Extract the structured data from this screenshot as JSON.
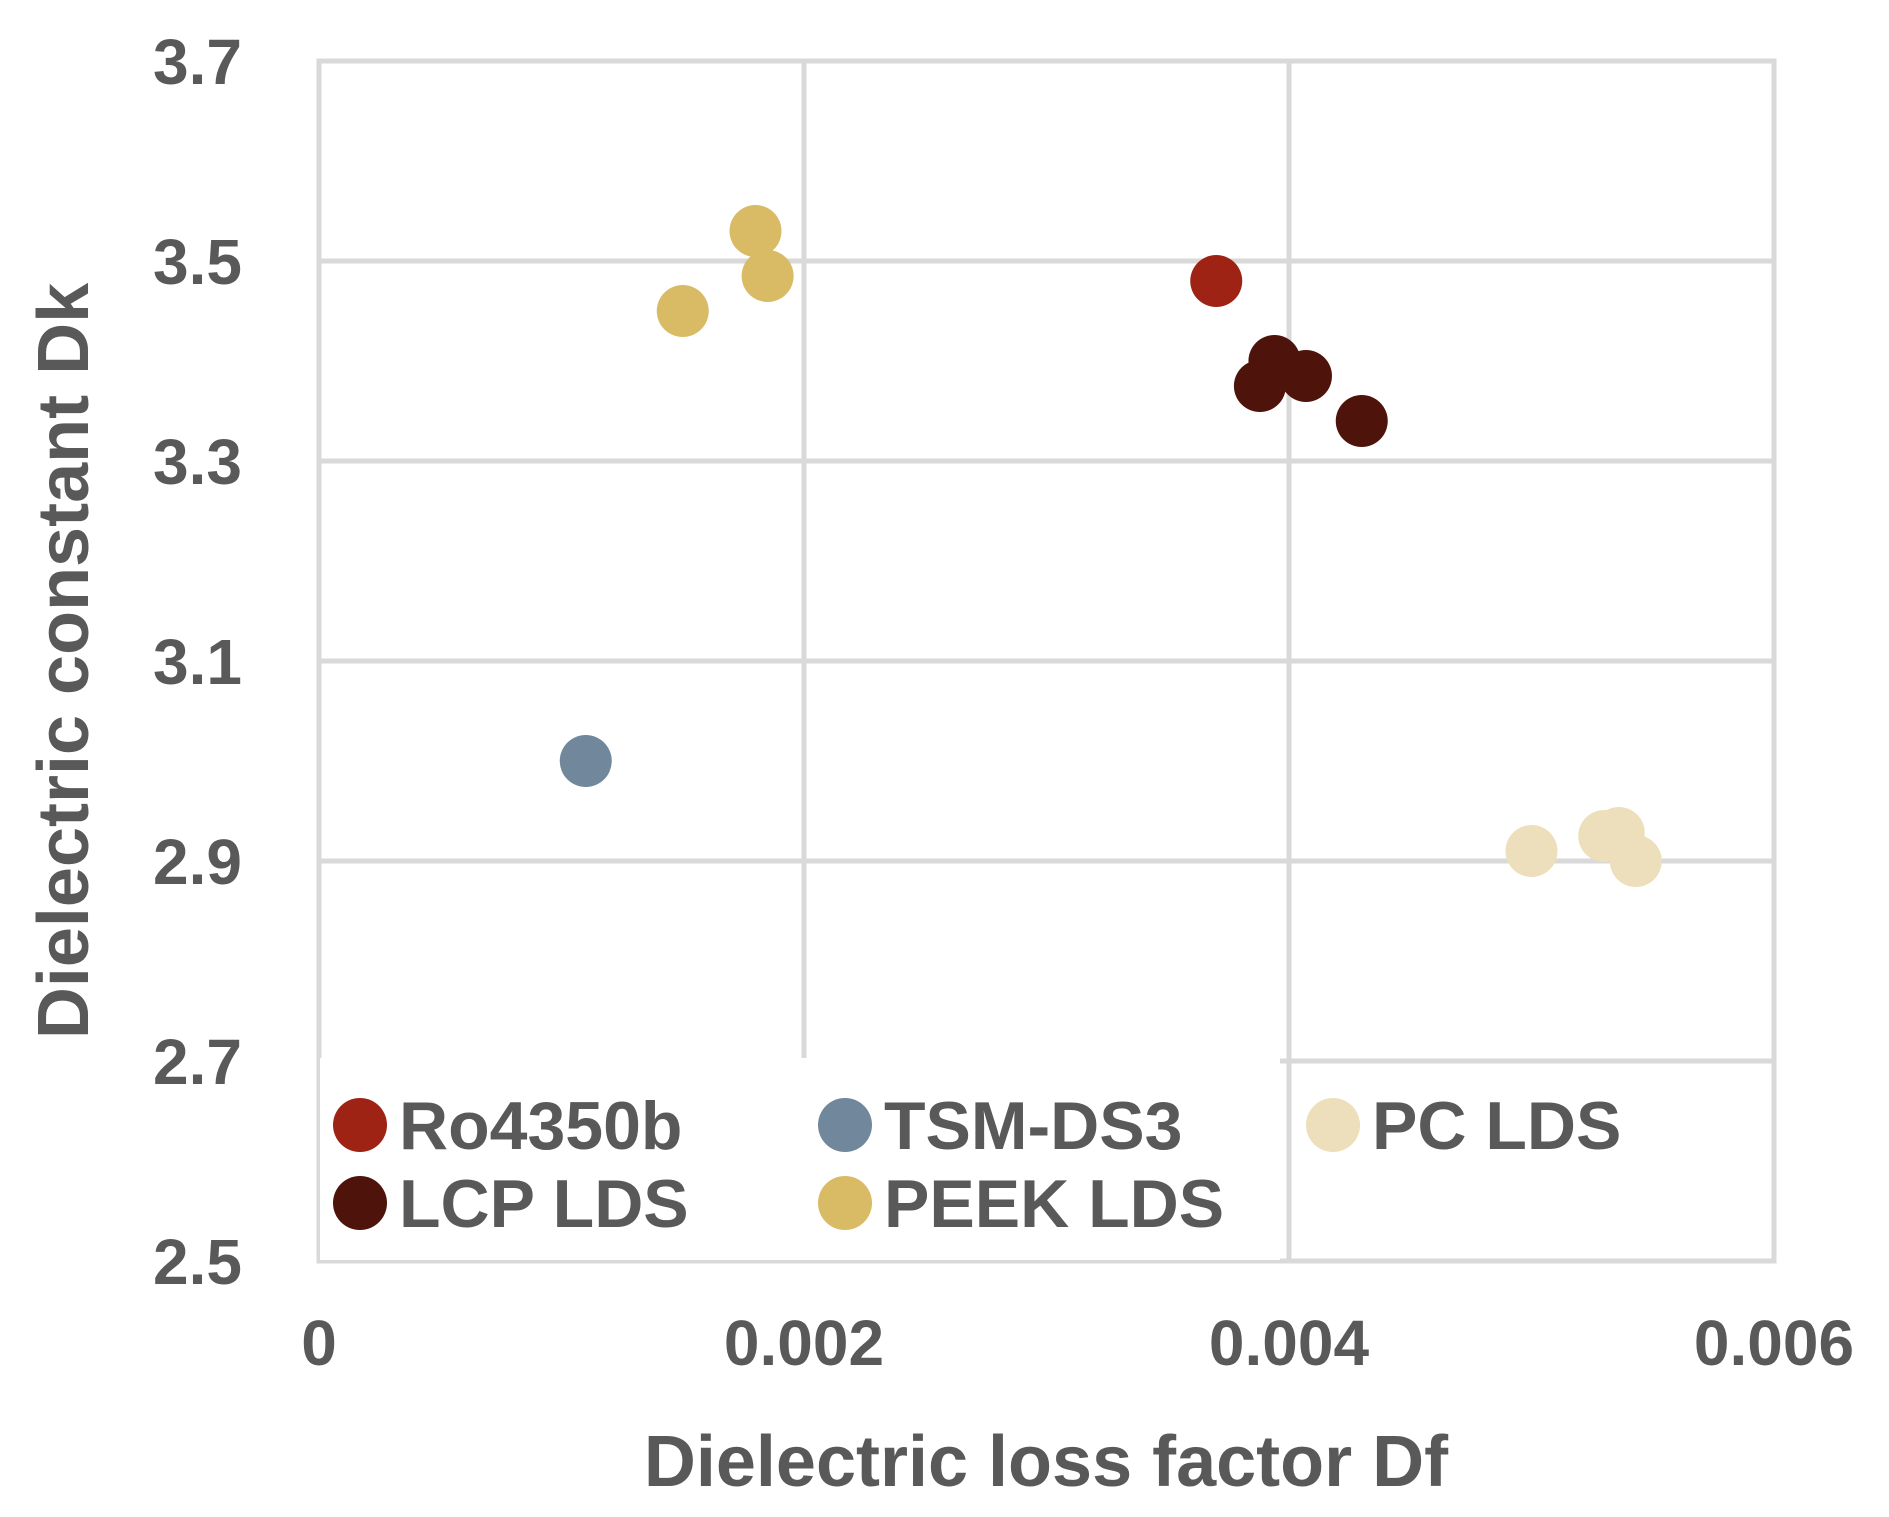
{
  "chart_data": {
    "type": "scatter",
    "title": "",
    "xlabel": "Dielectric loss factor Df",
    "ylabel": "Dielectric constant Dk",
    "xlim": [
      0,
      0.006
    ],
    "ylim": [
      2.5,
      3.7
    ],
    "x_ticks": [
      {
        "value": 0,
        "label": "0"
      },
      {
        "value": 0.002,
        "label": "0.002"
      },
      {
        "value": 0.004,
        "label": "0.004"
      },
      {
        "value": 0.006,
        "label": "0.006"
      }
    ],
    "y_ticks": [
      {
        "value": 2.5,
        "label": "2.5"
      },
      {
        "value": 2.7,
        "label": "2.7"
      },
      {
        "value": 2.9,
        "label": "2.9"
      },
      {
        "value": 3.1,
        "label": "3.1"
      },
      {
        "value": 3.3,
        "label": "3.3"
      },
      {
        "value": 3.5,
        "label": "3.5"
      },
      {
        "value": 3.7,
        "label": "3.7"
      }
    ],
    "grid": true,
    "legend_position": "bottom-left",
    "series": [
      {
        "name": "Ro4350b",
        "color": "#9e2314",
        "points": [
          [
            0.0037,
            3.48
          ]
        ]
      },
      {
        "name": "TSM-DS3",
        "color": "#71889c",
        "points": [
          [
            0.0011,
            3.0
          ]
        ]
      },
      {
        "name": "PC LDS",
        "color": "#eddfbb",
        "points": [
          [
            0.005,
            2.91
          ],
          [
            0.0053,
            2.925
          ],
          [
            0.00536,
            2.928
          ],
          [
            0.00543,
            2.9
          ]
        ]
      },
      {
        "name": "LCP LDS",
        "color": "#4e130b",
        "points": [
          [
            0.00394,
            3.4
          ],
          [
            0.00388,
            3.375
          ],
          [
            0.00407,
            3.385
          ],
          [
            0.0043,
            3.34
          ]
        ]
      },
      {
        "name": "PEEK LDS",
        "color": "#d9bb65",
        "points": [
          [
            0.0015,
            3.45
          ],
          [
            0.0018,
            3.53
          ],
          [
            0.00185,
            3.485
          ]
        ]
      }
    ]
  }
}
